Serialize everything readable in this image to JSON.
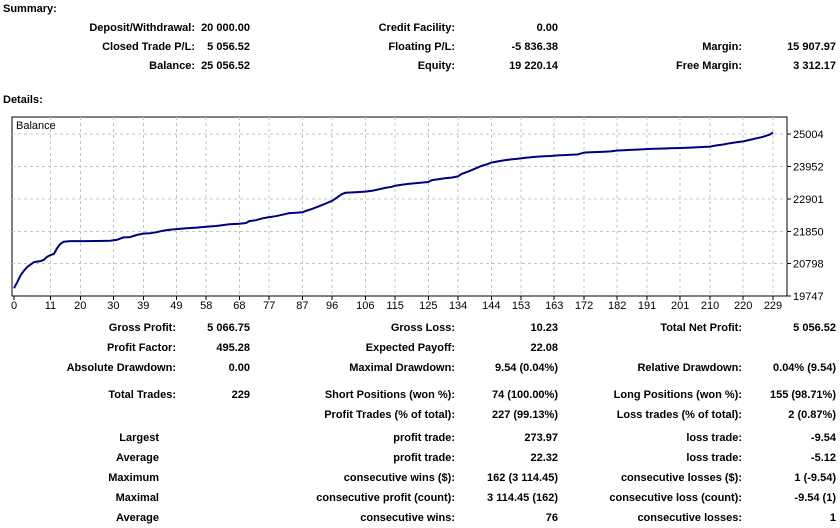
{
  "summary": {
    "title": "Summary:",
    "rows": [
      [
        "Deposit/Withdrawal:",
        "20 000.00",
        "Credit Facility:",
        "0.00",
        "",
        ""
      ],
      [
        "Closed Trade P/L:",
        "5 056.52",
        "Floating P/L:",
        "-5 836.38",
        "Margin:",
        "15 907.97"
      ],
      [
        "Balance:",
        "25 056.52",
        "Equity:",
        "19 220.14",
        "Free Margin:",
        "3 312.17"
      ]
    ]
  },
  "details": {
    "title": "Details:",
    "rows": [
      [
        "Gross Profit:",
        "5 066.75",
        "Gross Loss:",
        "10.23",
        "Total Net Profit:",
        "5 056.52"
      ],
      [
        "Profit Factor:",
        "495.28",
        "Expected Payoff:",
        "22.08",
        "",
        ""
      ],
      [
        "Absolute Drawdown:",
        "0.00",
        "Maximal Drawdown:",
        "9.54 (0.04%)",
        "Relative Drawdown:",
        "0.04% (9.54)"
      ],
      [
        "Total Trades:",
        "229",
        "Short Positions (won %):",
        "74 (100.00%)",
        "Long Positions (won %):",
        "155 (98.71%)"
      ],
      [
        "",
        "",
        "Profit Trades (% of total):",
        "227 (99.13%)",
        "Loss trades (% of total):",
        "2 (0.87%)"
      ],
      [
        "Largest",
        "",
        "profit trade:",
        "273.97",
        "loss trade:",
        "-9.54"
      ],
      [
        "Average",
        "",
        "profit trade:",
        "22.32",
        "loss trade:",
        "-5.12"
      ],
      [
        "Maximum",
        "",
        "consecutive wins ($):",
        "162 (3 114.45)",
        "consecutive losses ($):",
        "1 (-9.54)"
      ],
      [
        "Maximal",
        "",
        "consecutive profit (count):",
        "3 114.45 (162)",
        "consecutive loss (count):",
        "-9.54 (1)"
      ],
      [
        "Average",
        "",
        "consecutive wins:",
        "76",
        "consecutive losses:",
        "1"
      ]
    ]
  },
  "chart_data": {
    "type": "line",
    "title": "Balance",
    "legend_label": "Balance",
    "legend_position": "top-left",
    "xlabel": "",
    "ylabel": "",
    "grid": true,
    "x_ticks": [
      0,
      11,
      20,
      30,
      39,
      49,
      58,
      68,
      77,
      87,
      96,
      106,
      115,
      125,
      134,
      144,
      153,
      163,
      172,
      182,
      191,
      201,
      210,
      220,
      229
    ],
    "y_ticks": [
      19747,
      20798,
      21850,
      22901,
      23952,
      25004
    ],
    "xlim": [
      0,
      233
    ],
    "ylim": [
      19747,
      25590
    ],
    "line_color": "#000080",
    "grid_color": "#c4c4c4",
    "series": [
      {
        "name": "Balance",
        "points": [
          [
            0,
            20000
          ],
          [
            1,
            20200
          ],
          [
            2,
            20420
          ],
          [
            3,
            20570
          ],
          [
            4,
            20690
          ],
          [
            5,
            20770
          ],
          [
            6,
            20845
          ],
          [
            7,
            20865
          ],
          [
            8,
            20880
          ],
          [
            9,
            20920
          ],
          [
            10,
            21020
          ],
          [
            11,
            21080
          ],
          [
            12,
            21110
          ],
          [
            13,
            21300
          ],
          [
            14,
            21440
          ],
          [
            15,
            21510
          ],
          [
            17,
            21530
          ],
          [
            21,
            21530
          ],
          [
            25,
            21535
          ],
          [
            29,
            21545
          ],
          [
            31,
            21570
          ],
          [
            33,
            21650
          ],
          [
            35,
            21660
          ],
          [
            37,
            21730
          ],
          [
            39,
            21775
          ],
          [
            41,
            21785
          ],
          [
            43,
            21820
          ],
          [
            45,
            21870
          ],
          [
            47,
            21900
          ],
          [
            49,
            21920
          ],
          [
            52,
            21950
          ],
          [
            55,
            21970
          ],
          [
            58,
            22000
          ],
          [
            61,
            22020
          ],
          [
            63,
            22050
          ],
          [
            65,
            22075
          ],
          [
            68,
            22095
          ],
          [
            70,
            22120
          ],
          [
            71,
            22180
          ],
          [
            73,
            22210
          ],
          [
            75,
            22270
          ],
          [
            77,
            22310
          ],
          [
            79,
            22340
          ],
          [
            81,
            22390
          ],
          [
            83,
            22440
          ],
          [
            85,
            22450
          ],
          [
            87,
            22465
          ],
          [
            88,
            22510
          ],
          [
            90,
            22580
          ],
          [
            92,
            22660
          ],
          [
            94,
            22750
          ],
          [
            96,
            22840
          ],
          [
            97,
            22910
          ],
          [
            98,
            22990
          ],
          [
            99,
            23060
          ],
          [
            100,
            23100
          ],
          [
            103,
            23115
          ],
          [
            106,
            23140
          ],
          [
            108,
            23165
          ],
          [
            110,
            23210
          ],
          [
            112,
            23260
          ],
          [
            114,
            23295
          ],
          [
            115,
            23330
          ],
          [
            117,
            23360
          ],
          [
            119,
            23390
          ],
          [
            121,
            23410
          ],
          [
            123,
            23430
          ],
          [
            125,
            23450
          ],
          [
            126,
            23510
          ],
          [
            128,
            23540
          ],
          [
            130,
            23570
          ],
          [
            132,
            23595
          ],
          [
            134,
            23635
          ],
          [
            135,
            23710
          ],
          [
            137,
            23790
          ],
          [
            139,
            23880
          ],
          [
            141,
            23970
          ],
          [
            143,
            24040
          ],
          [
            144,
            24080
          ],
          [
            146,
            24120
          ],
          [
            148,
            24155
          ],
          [
            150,
            24185
          ],
          [
            152,
            24205
          ],
          [
            154,
            24235
          ],
          [
            156,
            24255
          ],
          [
            158,
            24275
          ],
          [
            160,
            24285
          ],
          [
            162,
            24295
          ],
          [
            164,
            24315
          ],
          [
            166,
            24325
          ],
          [
            168,
            24335
          ],
          [
            170,
            24345
          ],
          [
            172,
            24405
          ],
          [
            174,
            24415
          ],
          [
            176,
            24425
          ],
          [
            178,
            24435
          ],
          [
            180,
            24445
          ],
          [
            182,
            24475
          ],
          [
            184,
            24485
          ],
          [
            186,
            24495
          ],
          [
            188,
            24505
          ],
          [
            190,
            24515
          ],
          [
            192,
            24525
          ],
          [
            195,
            24535
          ],
          [
            198,
            24545
          ],
          [
            201,
            24555
          ],
          [
            204,
            24570
          ],
          [
            207,
            24585
          ],
          [
            210,
            24600
          ],
          [
            212,
            24640
          ],
          [
            214,
            24670
          ],
          [
            216,
            24710
          ],
          [
            218,
            24740
          ],
          [
            220,
            24770
          ],
          [
            222,
            24820
          ],
          [
            224,
            24870
          ],
          [
            226,
            24920
          ],
          [
            228,
            24990
          ],
          [
            229,
            25056.52
          ]
        ]
      }
    ]
  },
  "colors": {
    "background": "#ffffff",
    "text": "#000000",
    "chart_line": "#000080",
    "chart_grid": "#c4c4c4",
    "chart_border": "#000000"
  }
}
